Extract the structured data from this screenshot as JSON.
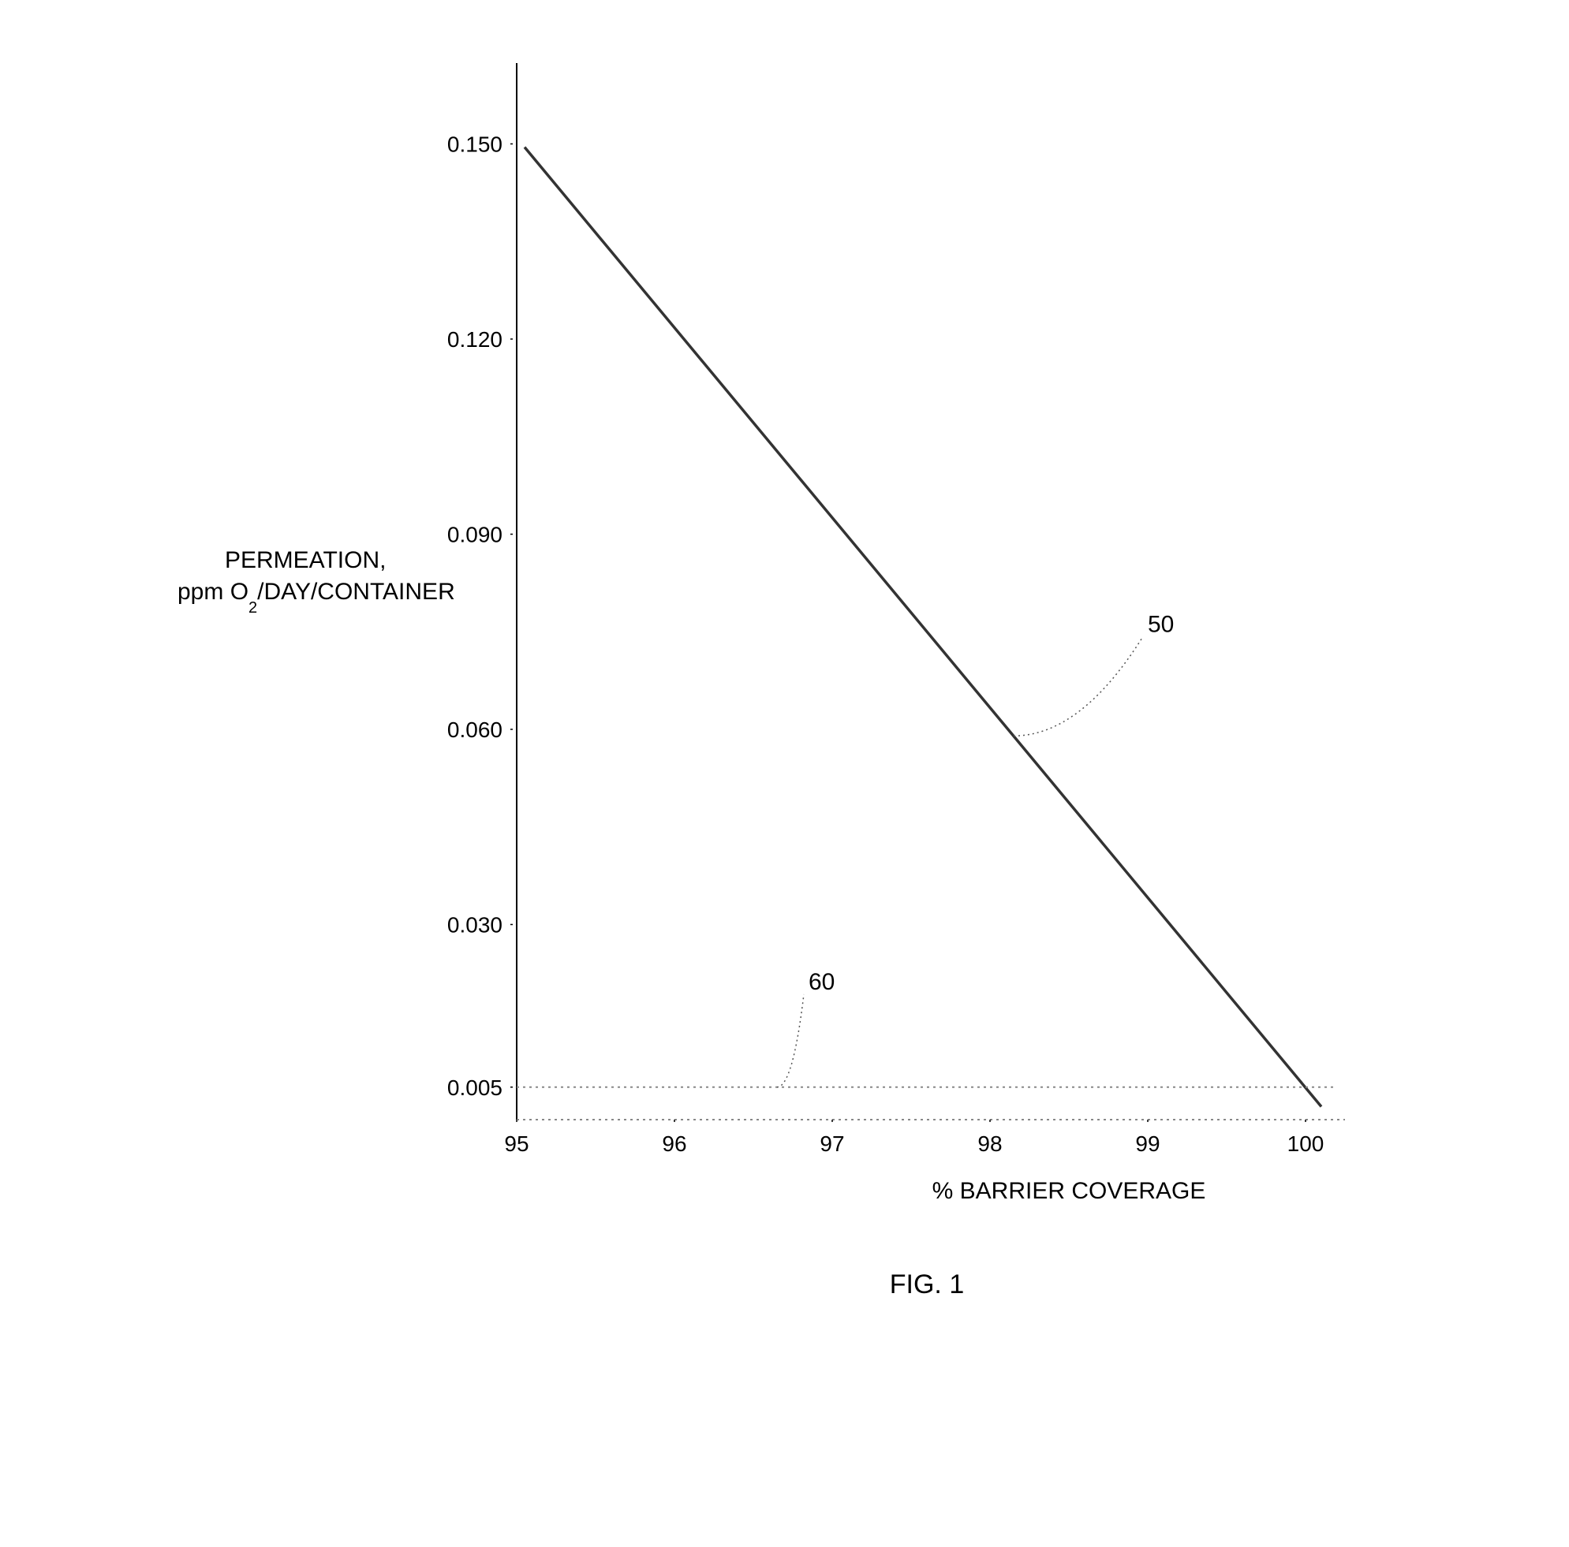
{
  "chart": {
    "type": "line",
    "background_color": "#ffffff",
    "plot_border_color": "#000000",
    "y_axis": {
      "label_line1": "PERMEATION,",
      "label_line2_pre": "ppm O",
      "label_line2_sub": "2",
      "label_line2_post": "/DAY/CONTAINER",
      "ticks": [
        {
          "value": 0.005,
          "label": "0.005"
        },
        {
          "value": 0.03,
          "label": "0.030"
        },
        {
          "value": 0.06,
          "label": "0.060"
        },
        {
          "value": 0.09,
          "label": "0.090"
        },
        {
          "value": 0.12,
          "label": "0.120"
        },
        {
          "value": 0.15,
          "label": "0.150"
        }
      ],
      "min": 0.0,
      "max": 0.16,
      "label_fontsize": 30,
      "tick_fontsize": 28,
      "tick_dash": "3 5"
    },
    "x_axis": {
      "label": "% BARRIER COVERAGE",
      "ticks": [
        {
          "value": 95,
          "label": "95"
        },
        {
          "value": 96,
          "label": "96"
        },
        {
          "value": 97,
          "label": "97"
        },
        {
          "value": 98,
          "label": "98"
        },
        {
          "value": 99,
          "label": "99"
        },
        {
          "value": 100,
          "label": "100"
        }
      ],
      "min": 95,
      "max": 100.2,
      "label_fontsize": 30,
      "tick_fontsize": 28,
      "tick_dash": "3 5"
    },
    "series": [
      {
        "id": "line50",
        "color": "#333333",
        "width": 3.5,
        "points": [
          {
            "x": 95.05,
            "y": 0.1495
          },
          {
            "x": 100.1,
            "y": 0.002
          }
        ],
        "callout_label": "50",
        "callout_anchor": {
          "x": 98.15,
          "y": 0.059
        },
        "callout_label_pos": {
          "x": 99.0,
          "y": 0.075
        }
      },
      {
        "id": "line60",
        "color": "#888888",
        "width": 2,
        "dash": "3 5",
        "points": [
          {
            "x": 95.0,
            "y": 0.005
          },
          {
            "x": 100.2,
            "y": 0.005
          }
        ],
        "callout_label": "60",
        "callout_anchor": {
          "x": 96.65,
          "y": 0.005
        },
        "callout_label_pos": {
          "x": 96.85,
          "y": 0.02
        }
      }
    ],
    "figure_caption": "FIG. 1",
    "caption_fontsize": 34
  }
}
